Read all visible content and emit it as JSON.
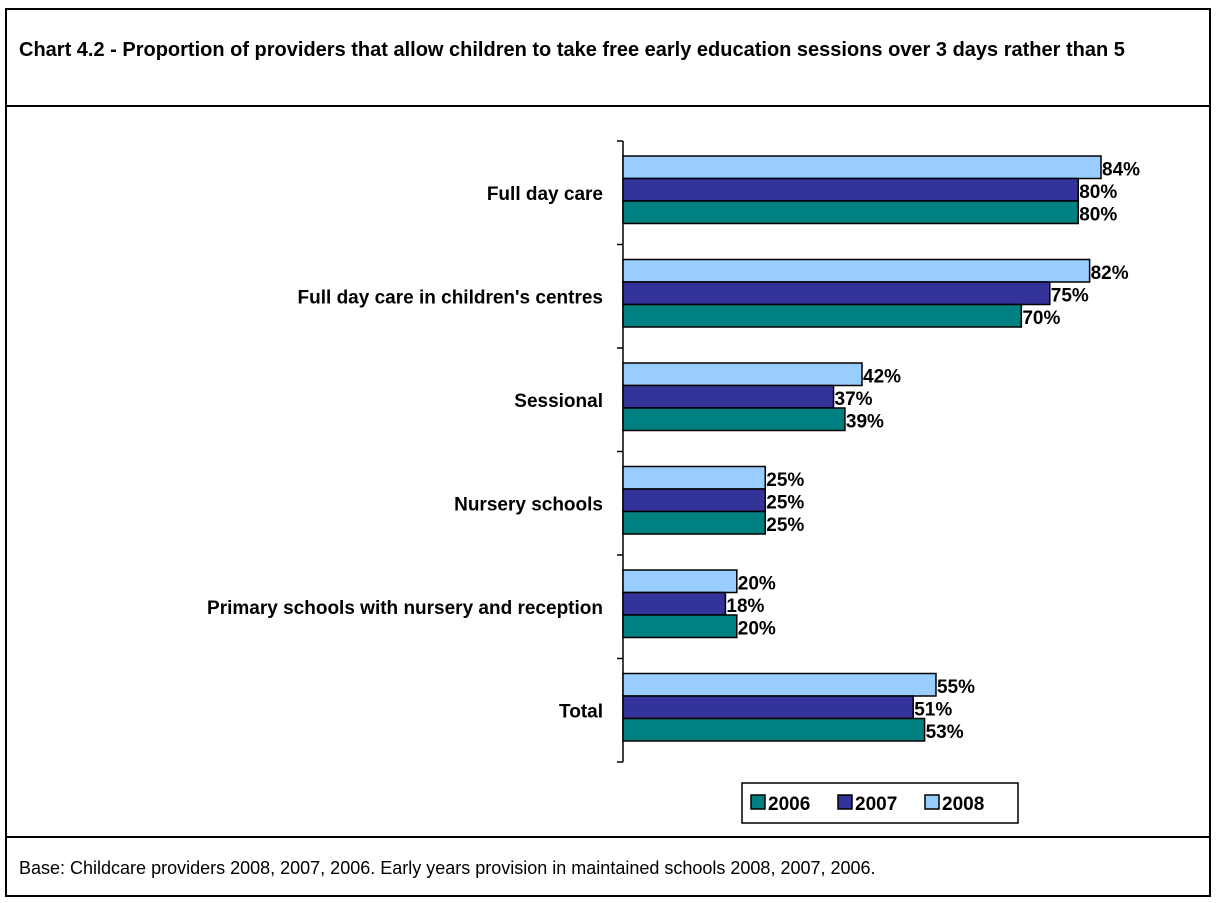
{
  "chart_data": {
    "type": "bar",
    "orientation": "horizontal",
    "title": "Chart 4.2 - Proportion of providers that allow children to take free early education sessions over 3 days rather than 5",
    "categories": [
      "Full day care",
      "Full day care in children's centres",
      "Sessional",
      "Nursery schools",
      "Primary schools with nursery and reception",
      "Total"
    ],
    "series": [
      {
        "name": "2008",
        "color": "#99ccff",
        "values": [
          84,
          82,
          42,
          25,
          20,
          55
        ],
        "labels": [
          "84%",
          "82%",
          "42%",
          "25%",
          "20%",
          "55%"
        ]
      },
      {
        "name": "2007",
        "color": "#333399",
        "values": [
          80,
          75,
          37,
          25,
          18,
          51
        ],
        "labels": [
          "80%",
          "75%",
          "37%",
          "25%",
          "18%",
          "51%"
        ]
      },
      {
        "name": "2006",
        "color": "#008080",
        "values": [
          80,
          70,
          39,
          25,
          20,
          53
        ],
        "labels": [
          "80%",
          "70%",
          "39%",
          "25%",
          "20%",
          "53%"
        ]
      }
    ],
    "legend_order": [
      "2006",
      "2007",
      "2008"
    ],
    "legend_position": "bottom-right",
    "value_axis": {
      "min": 0,
      "max": 100,
      "visible": false
    },
    "grid": false,
    "xlabel": "",
    "ylabel": ""
  },
  "footer": {
    "base_note": "Base: Childcare providers 2008, 2007, 2006. Early years provision in maintained schools 2008, 2007, 2006."
  }
}
